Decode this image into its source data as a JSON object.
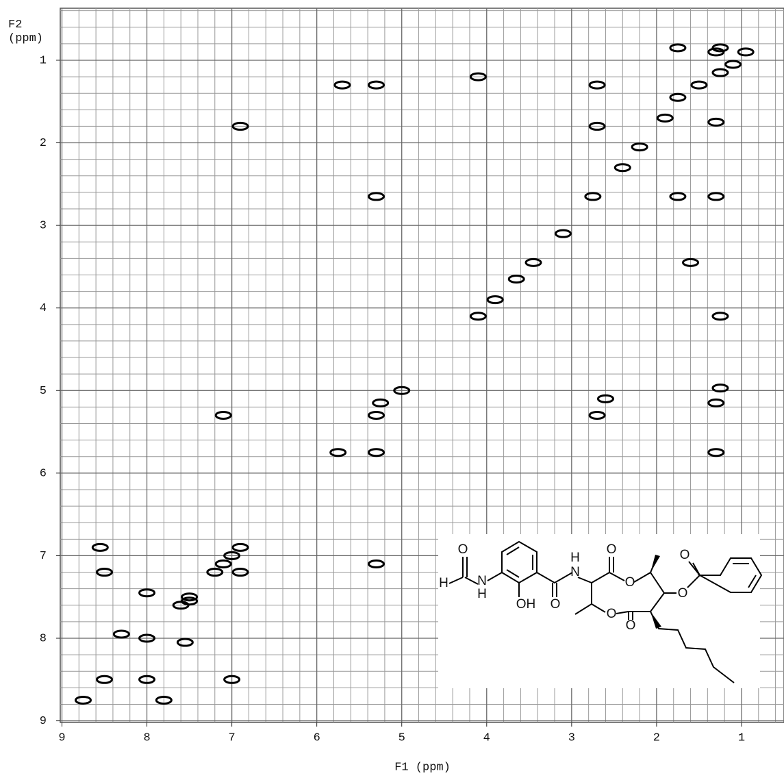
{
  "chart_data": {
    "type": "scatter",
    "x_label": "F1 (ppm)",
    "y_label": "F2\n(ppm)",
    "x": [
      1.25,
      0.95,
      1.1,
      1.25,
      1.5,
      1.75,
      1.9,
      2.2,
      2.4,
      2.75,
      3.1,
      3.45,
      3.65,
      3.9,
      5.0,
      5.3,
      5.75,
      7.1,
      6.9,
      7.2,
      7.5,
      7.6,
      8.0,
      8.5,
      8.75,
      5.7,
      5.3,
      4.1,
      2.7,
      1.3,
      6.9,
      2.7,
      5.3,
      1.75,
      1.3,
      1.6,
      4.1,
      1.25,
      1.3,
      1.25,
      5.25,
      7.1,
      2.7,
      2.6,
      1.3,
      5.3,
      5.3,
      8.55,
      8.5,
      8.0,
      8.3,
      7.55,
      7.8,
      7.0,
      8.0,
      7.5,
      6.9,
      7.0,
      1.75,
      1.3
    ],
    "y": [
      0.85,
      0.9,
      1.05,
      1.15,
      1.3,
      1.45,
      1.7,
      2.05,
      2.3,
      2.65,
      3.1,
      3.45,
      3.65,
      3.9,
      5.0,
      5.3,
      5.75,
      7.1,
      6.9,
      7.2,
      7.5,
      7.6,
      8.0,
      8.5,
      8.75,
      1.3,
      1.3,
      1.2,
      1.3,
      1.75,
      1.8,
      1.8,
      2.65,
      2.65,
      2.65,
      3.45,
      4.1,
      4.1,
      5.15,
      4.97,
      5.15,
      5.3,
      5.3,
      5.1,
      5.75,
      5.75,
      7.1,
      6.9,
      7.2,
      7.45,
      7.95,
      8.05,
      8.75,
      8.5,
      8.5,
      7.55,
      7.2,
      7.0,
      0.85,
      0.9
    ],
    "color": "#000000",
    "xlim": [
      9.02,
      0.5
    ],
    "ylim": [
      0.37,
      9.02
    ],
    "xticks": [
      9,
      8,
      7,
      6,
      5,
      4,
      3,
      2,
      1
    ],
    "yticks": [
      1,
      2,
      3,
      4,
      5,
      6,
      7,
      8,
      9
    ],
    "grid": true
  },
  "structure": {
    "atoms": [
      "O",
      "H",
      "N",
      "H",
      "OH",
      "O",
      "H",
      "N",
      "O",
      "O",
      "O",
      "O",
      "O",
      "O"
    ]
  }
}
